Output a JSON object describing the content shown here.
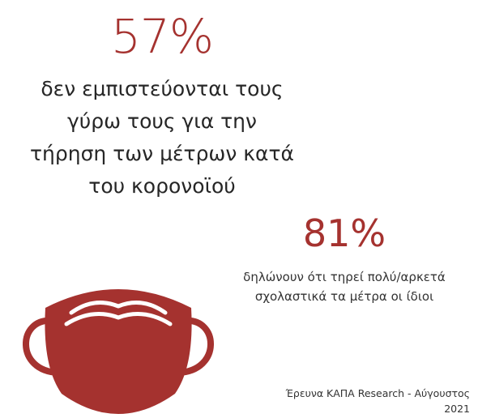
{
  "accent_color": "#a5322f",
  "stat1": {
    "percent": "57%",
    "lines": [
      "δεν εμπιστεύονται τους",
      "γύρω τους για την",
      "τήρηση των μέτρων κατά",
      "του κορονοϊού"
    ]
  },
  "stat2": {
    "percent": "81%",
    "lines": [
      "δηλώνουν ότι τηρεί πολύ/αρκετά",
      "σχολαστικά τα μέτρα οι ίδιοι"
    ]
  },
  "icon": "face-mask-icon",
  "source": {
    "lines": [
      "Έρευνα ΚΑΠΑ Research - Αύγουστος",
      "2021"
    ]
  }
}
